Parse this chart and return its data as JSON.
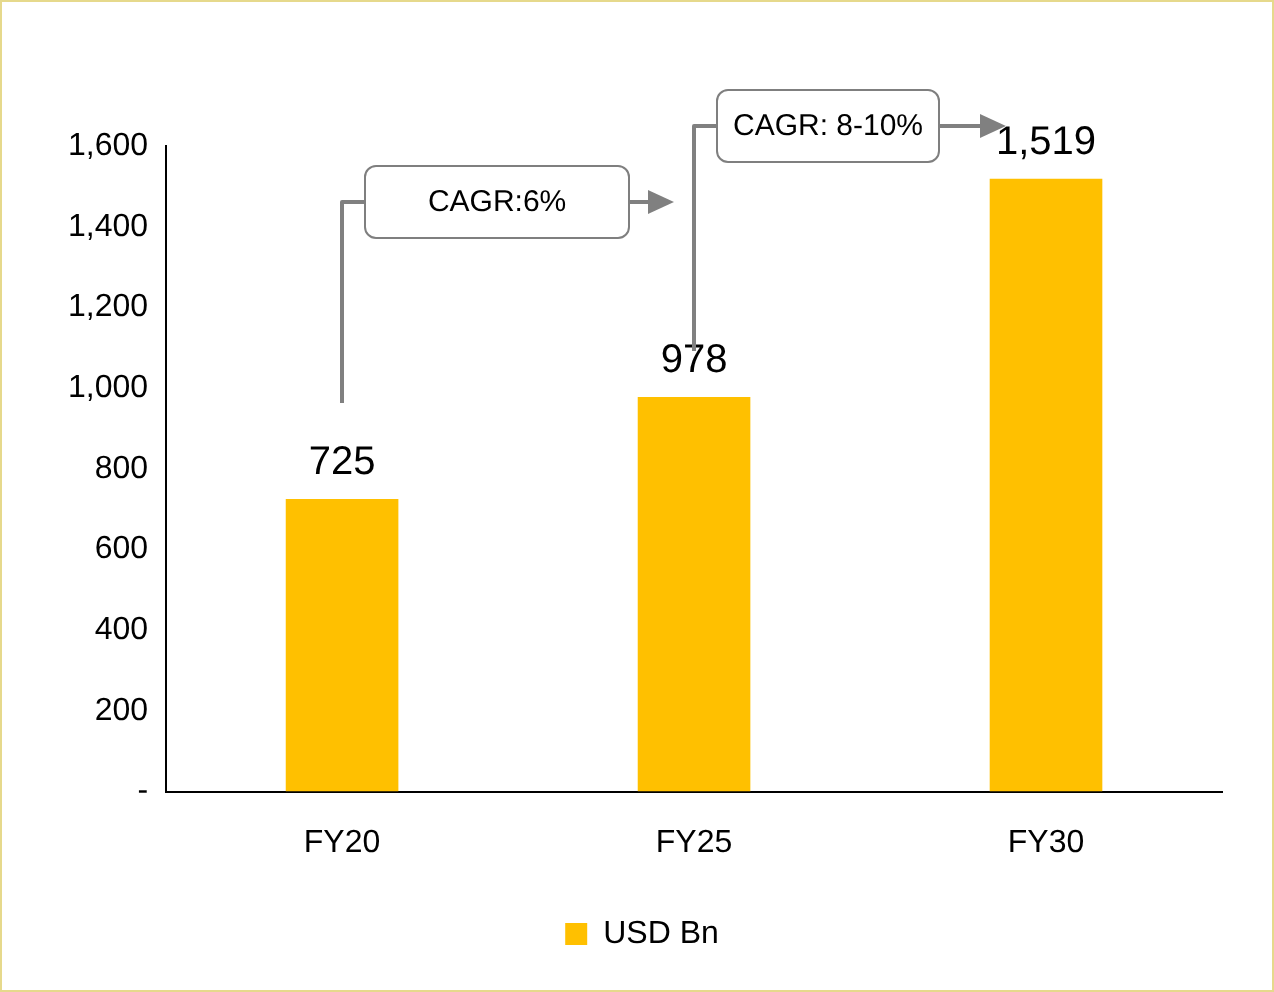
{
  "chart_data": {
    "type": "bar",
    "categories": [
      "FY20",
      "FY25",
      "FY30"
    ],
    "series": [
      {
        "name": "USD Bn",
        "color": "#ffc000",
        "values": [
          725,
          978,
          1519
        ],
        "value_labels": [
          "725",
          "978",
          "1,519"
        ]
      }
    ],
    "ylim": [
      0,
      1600
    ],
    "yticks": [
      {
        "value": 0,
        "label": "-"
      },
      {
        "value": 200,
        "label": "200"
      },
      {
        "value": 400,
        "label": "400"
      },
      {
        "value": 600,
        "label": "600"
      },
      {
        "value": 800,
        "label": "800"
      },
      {
        "value": 1000,
        "label": "1,000"
      },
      {
        "value": 1200,
        "label": "1,200"
      },
      {
        "value": 1400,
        "label": "1,400"
      },
      {
        "value": 1600,
        "label": "1,600"
      }
    ],
    "grid": false,
    "legend": "bottom",
    "annotations": [
      "CAGR:6%",
      "CAGR: 8-10%"
    ]
  }
}
